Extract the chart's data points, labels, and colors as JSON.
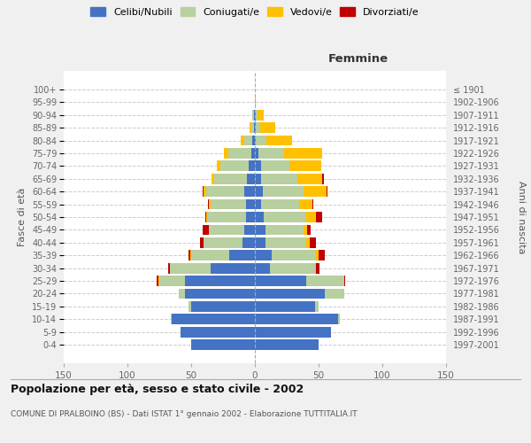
{
  "age_groups": [
    "0-4",
    "5-9",
    "10-14",
    "15-19",
    "20-24",
    "25-29",
    "30-34",
    "35-39",
    "40-44",
    "45-49",
    "50-54",
    "55-59",
    "60-64",
    "65-69",
    "70-74",
    "75-79",
    "80-84",
    "85-89",
    "90-94",
    "95-99",
    "100+"
  ],
  "birth_years": [
    "1997-2001",
    "1992-1996",
    "1987-1991",
    "1982-1986",
    "1977-1981",
    "1972-1976",
    "1967-1971",
    "1962-1966",
    "1957-1961",
    "1952-1956",
    "1947-1951",
    "1942-1946",
    "1937-1941",
    "1932-1936",
    "1927-1931",
    "1922-1926",
    "1917-1921",
    "1912-1916",
    "1907-1911",
    "1902-1906",
    "≤ 1901"
  ],
  "colors": {
    "celibi": "#4472c4",
    "coniugati": "#b8cfa0",
    "vedovi": "#ffc000",
    "divorziati": "#c00000"
  },
  "males": {
    "celibi": [
      50,
      58,
      65,
      50,
      55,
      55,
      35,
      20,
      10,
      8,
      7,
      7,
      8,
      6,
      5,
      3,
      2,
      1,
      1,
      0,
      0
    ],
    "coniugati": [
      0,
      0,
      1,
      2,
      5,
      20,
      32,
      30,
      30,
      28,
      30,
      28,
      30,
      26,
      22,
      18,
      6,
      2,
      1,
      0,
      0
    ],
    "vedovi": [
      0,
      0,
      0,
      0,
      0,
      1,
      0,
      1,
      0,
      0,
      1,
      1,
      2,
      2,
      3,
      3,
      3,
      1,
      0,
      0,
      0
    ],
    "divorziati": [
      0,
      0,
      0,
      0,
      0,
      1,
      1,
      1,
      3,
      5,
      1,
      1,
      1,
      0,
      0,
      0,
      0,
      0,
      0,
      0,
      0
    ]
  },
  "females": {
    "celibi": [
      50,
      60,
      65,
      47,
      55,
      40,
      12,
      13,
      8,
      8,
      7,
      5,
      6,
      5,
      5,
      3,
      1,
      1,
      1,
      0,
      0
    ],
    "coniugati": [
      0,
      0,
      2,
      3,
      15,
      30,
      35,
      35,
      32,
      30,
      33,
      30,
      32,
      28,
      22,
      20,
      8,
      3,
      1,
      0,
      0
    ],
    "vedovi": [
      0,
      0,
      0,
      0,
      0,
      0,
      1,
      2,
      3,
      3,
      8,
      10,
      18,
      20,
      25,
      30,
      20,
      12,
      5,
      1,
      0
    ],
    "divorziati": [
      0,
      0,
      0,
      0,
      0,
      1,
      3,
      5,
      5,
      3,
      5,
      1,
      1,
      1,
      0,
      0,
      0,
      0,
      0,
      0,
      0
    ]
  },
  "xlim": 150,
  "title": "Popolazione per età, sesso e stato civile - 2002",
  "subtitle": "COMUNE DI PRALBOINO (BS) - Dati ISTAT 1° gennaio 2002 - Elaborazione TUTTITALIA.IT",
  "ylabel_left": "Fasce di età",
  "ylabel_right": "Anni di nascita",
  "xlabel_right": "Femmine",
  "legend_labels": [
    "Celibi/Nubili",
    "Coniugati/e",
    "Vedovi/e",
    "Divorziati/e"
  ],
  "background_color": "#f0f0f0",
  "plot_bg_color": "#ffffff"
}
